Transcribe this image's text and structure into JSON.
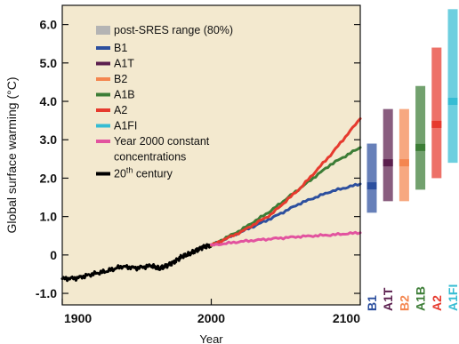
{
  "chart_data": {
    "type": "line",
    "title": "",
    "xlabel": "Year",
    "ylabel": "Global surface warming (°C)",
    "xlim": [
      1900,
      2100
    ],
    "ylim": [
      -1.3,
      6.5
    ],
    "x_ticks": [
      "1900",
      "2000",
      "2100"
    ],
    "y_ticks": [
      "-1.0",
      "0",
      "1.0",
      "2.0",
      "3.0",
      "4.0",
      "5.0",
      "6.0"
    ],
    "plot_background": "#f3e9cf",
    "legend": {
      "placement": "top-left",
      "range_label": "post-SRES range (80%)",
      "range_color": "#b4b4b4",
      "entries": [
        {
          "label": "B1",
          "color": "#2c4f9e"
        },
        {
          "label": "A1T",
          "color": "#5b1f4e"
        },
        {
          "label": "B2",
          "color": "#f4864f"
        },
        {
          "label": "A1B",
          "color": "#3c7d36"
        },
        {
          "label": "A2",
          "color": "#e63a2e"
        },
        {
          "label": "A1FI",
          "color": "#35bcd3"
        },
        {
          "label": "Year 2000 constant",
          "label2": "concentrations",
          "color": "#e2539f"
        },
        {
          "label": "20",
          "sup": "th",
          "suffix": " century",
          "color": "#000000"
        }
      ]
    },
    "series": [
      {
        "name": "20th century",
        "color": "#000000",
        "x": [
          1900,
          1910,
          1920,
          1930,
          1940,
          1950,
          1960,
          1965,
          1970,
          1975,
          1980,
          1985,
          1990,
          1995,
          2000
        ],
        "y": [
          -0.62,
          -0.6,
          -0.5,
          -0.42,
          -0.3,
          -0.34,
          -0.28,
          -0.36,
          -0.28,
          -0.18,
          -0.05,
          0.02,
          0.12,
          0.22,
          0.25
        ]
      },
      {
        "name": "B1",
        "color": "#2c4f9e",
        "x": [
          2000,
          2020,
          2040,
          2060,
          2080,
          2100
        ],
        "y": [
          0.25,
          0.6,
          0.95,
          1.35,
          1.65,
          1.85
        ]
      },
      {
        "name": "A1B",
        "color": "#3c7d36",
        "x": [
          2000,
          2020,
          2040,
          2060,
          2080,
          2100
        ],
        "y": [
          0.25,
          0.65,
          1.15,
          1.75,
          2.35,
          2.8
        ]
      },
      {
        "name": "A2",
        "color": "#e63a2e",
        "x": [
          2000,
          2020,
          2040,
          2060,
          2080,
          2100
        ],
        "y": [
          0.25,
          0.6,
          1.05,
          1.75,
          2.6,
          3.55
        ]
      },
      {
        "name": "Year 2000 constant concentrations",
        "color": "#e2539f",
        "x": [
          2000,
          2020,
          2040,
          2060,
          2080,
          2100
        ],
        "y": [
          0.25,
          0.35,
          0.42,
          0.48,
          0.52,
          0.58
        ]
      }
    ],
    "scenario_bars": [
      {
        "name": "B1",
        "color": "#2c4f9e",
        "low": 1.1,
        "high": 2.9,
        "best": 1.8
      },
      {
        "name": "A1T",
        "color": "#5b1f4e",
        "low": 1.4,
        "high": 3.8,
        "best": 2.4
      },
      {
        "name": "B2",
        "color": "#f4864f",
        "low": 1.4,
        "high": 3.8,
        "best": 2.4
      },
      {
        "name": "A1B",
        "color": "#3c7d36",
        "low": 1.7,
        "high": 4.4,
        "best": 2.8
      },
      {
        "name": "A2",
        "color": "#e63a2e",
        "low": 2.0,
        "high": 5.4,
        "best": 3.4
      },
      {
        "name": "A1FI",
        "color": "#35bcd3",
        "low": 2.4,
        "high": 6.4,
        "best": 4.0
      }
    ]
  }
}
